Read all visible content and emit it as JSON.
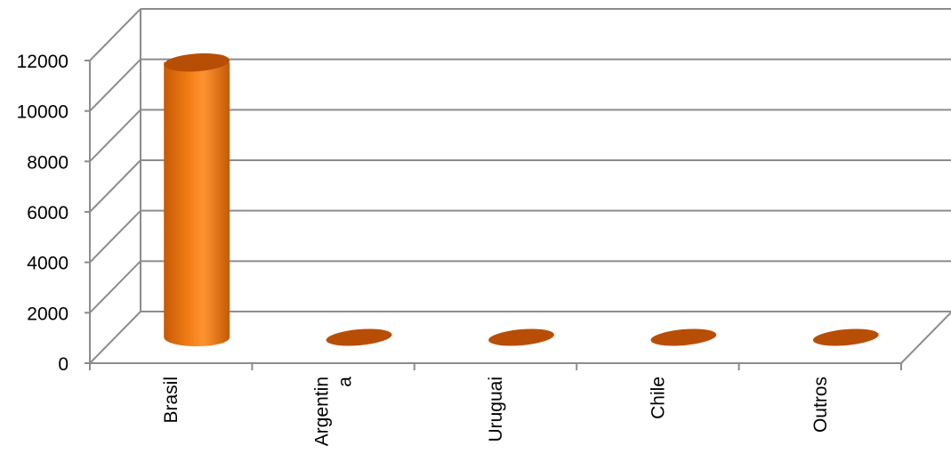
{
  "chart_data": {
    "type": "bar",
    "style": "3d-cylinder",
    "categories": [
      "Brasil",
      "Argentin\na",
      "Uruguai",
      "Chile",
      "Outros"
    ],
    "series": [
      {
        "values": [
          10900,
          0,
          0,
          0,
          0
        ]
      }
    ],
    "ylim": [
      0,
      12000
    ],
    "yticks": [
      0,
      2000,
      4000,
      6000,
      8000,
      10000,
      12000
    ],
    "grid": true,
    "legend": "none",
    "colors": {
      "bar": "#f07a12",
      "bar_dark": "#b84e06",
      "bar_light": "#ff9a3c",
      "grid": "#8c8c8c",
      "wall": "#8c8c8c"
    }
  }
}
